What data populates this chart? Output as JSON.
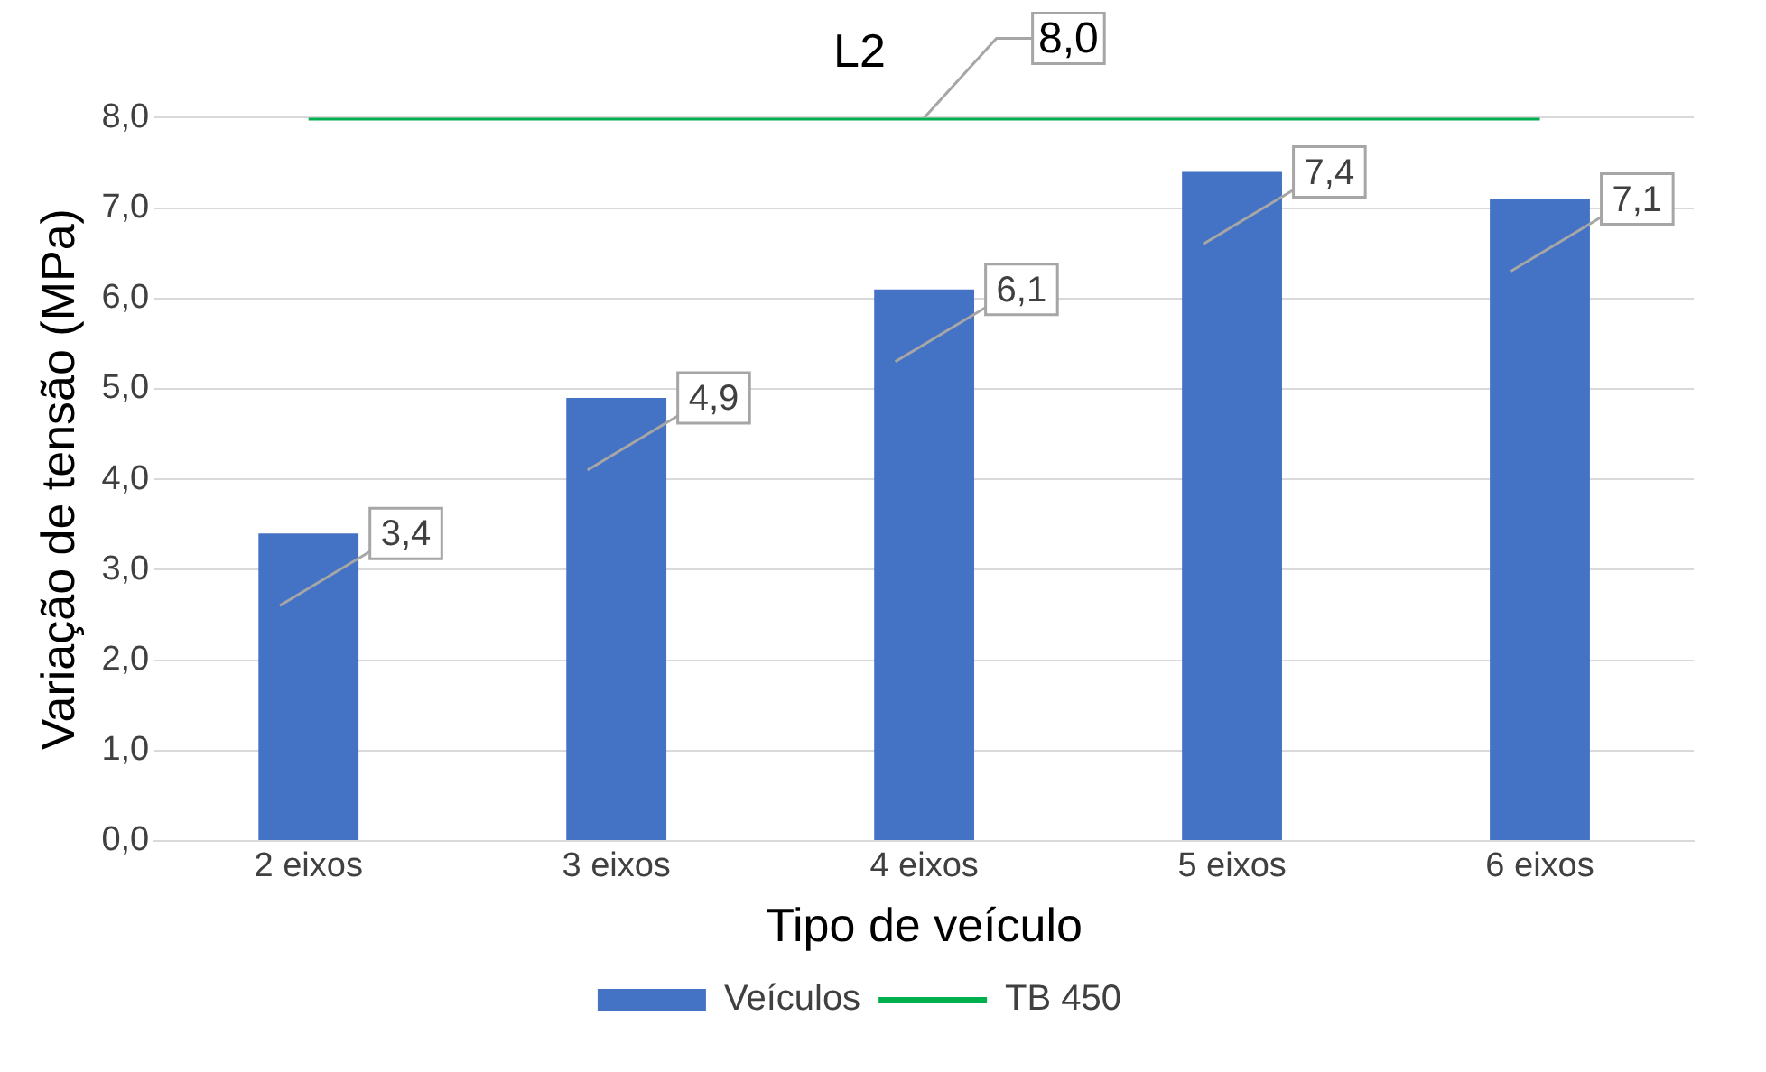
{
  "chart_data": {
    "type": "bar",
    "title": "L2",
    "xlabel": "Tipo de veículo",
    "ylabel": "Variação de tensão (MPa)",
    "categories": [
      "2 eixos",
      "3 eixos",
      "4 eixos",
      "5 eixos",
      "6 eixos"
    ],
    "series": [
      {
        "name": "Veículos",
        "color": "#4472c4",
        "values": [
          3.4,
          4.9,
          6.1,
          7.4,
          7.1
        ],
        "value_labels": [
          "3,4",
          "4,9",
          "6,1",
          "7,4",
          "7,1"
        ]
      },
      {
        "name": "TB 450",
        "type": "line",
        "color": "#00b050",
        "values": [
          8,
          8,
          8,
          8,
          8
        ],
        "value_labels": [
          null,
          null,
          "8,0",
          null,
          null
        ]
      }
    ],
    "ylim": [
      0,
      8
    ],
    "yticks": [
      {
        "value": 0,
        "label": "0,0"
      },
      {
        "value": 1,
        "label": "1,0"
      },
      {
        "value": 2,
        "label": "2,0"
      },
      {
        "value": 3,
        "label": "3,0"
      },
      {
        "value": 4,
        "label": "4,0"
      },
      {
        "value": 5,
        "label": "5,0"
      },
      {
        "value": 6,
        "label": "6,0"
      },
      {
        "value": 7,
        "label": "7,0"
      },
      {
        "value": 8,
        "label": "8,0"
      }
    ],
    "grid": "y",
    "legend": "bottom",
    "marker": "none"
  }
}
